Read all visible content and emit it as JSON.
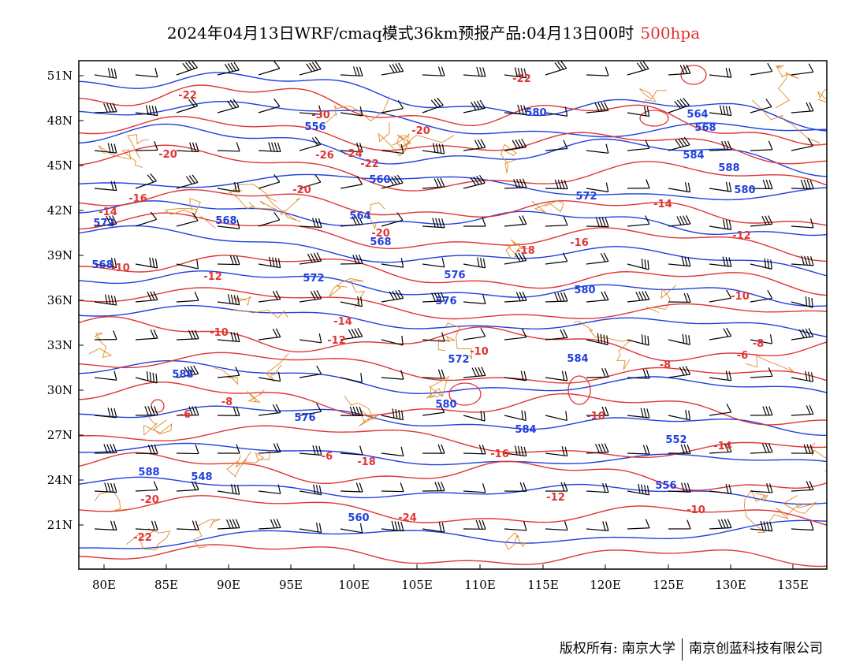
{
  "title": {
    "main": "2024年04月13日WRF/cmaq模式36km预报产品:04月13日00时",
    "level": "500hpa"
  },
  "footer": {
    "copyright": "版权所有: 南京大学",
    "company": "南京创蓝科技有限公司"
  },
  "axes": {
    "lon_ticks": [
      "80E",
      "85E",
      "90E",
      "95E",
      "100E",
      "105E",
      "110E",
      "115E",
      "120E",
      "125E",
      "130E",
      "135E"
    ],
    "lat_ticks": [
      "51N",
      "48N",
      "45N",
      "42N",
      "39N",
      "36N",
      "33N",
      "30N",
      "27N",
      "24N",
      "21N"
    ]
  },
  "colors": {
    "height_contour": "#2040e0",
    "temp_contour": "#e03535",
    "border": "#e08a2a",
    "wind_barb": "#000000"
  },
  "height_labels": [
    "572",
    "568",
    "568",
    "556",
    "560",
    "564",
    "568",
    "572",
    "576",
    "580",
    "584",
    "588",
    "572",
    "576",
    "580",
    "584",
    "588",
    "548",
    "552",
    "556",
    "560",
    "564",
    "568",
    "580",
    "584",
    "588",
    "572",
    "576",
    "580"
  ],
  "temp_labels": [
    "-22",
    "-22",
    "-20",
    "-30",
    "-26",
    "-24",
    "-22",
    "-20",
    "-20",
    "-16",
    "-14",
    "-10",
    "-12",
    "-14",
    "-10",
    "-12",
    "-10",
    "-8",
    "-10",
    "-6",
    "-8",
    "-6",
    "-18",
    "-16",
    "-14",
    "-12",
    "-10",
    "-20",
    "-22",
    "-24",
    "-20",
    "-18",
    "-16",
    "-14",
    "-12",
    "-10",
    "-8",
    "-6"
  ],
  "chart_data": {
    "type": "map",
    "variables": [
      "geopotential height (dagpm, blue)",
      "temperature (°C, red)",
      "wind barbs"
    ],
    "lon_range": [
      78,
      138
    ],
    "lat_range": [
      18,
      52
    ],
    "height_contours": [
      548,
      552,
      556,
      560,
      564,
      568,
      572,
      576,
      580,
      584,
      588
    ],
    "temp_contours": [
      -30,
      -26,
      -24,
      -22,
      -20,
      -18,
      -16,
      -14,
      -12,
      -10,
      -8,
      -6
    ]
  }
}
